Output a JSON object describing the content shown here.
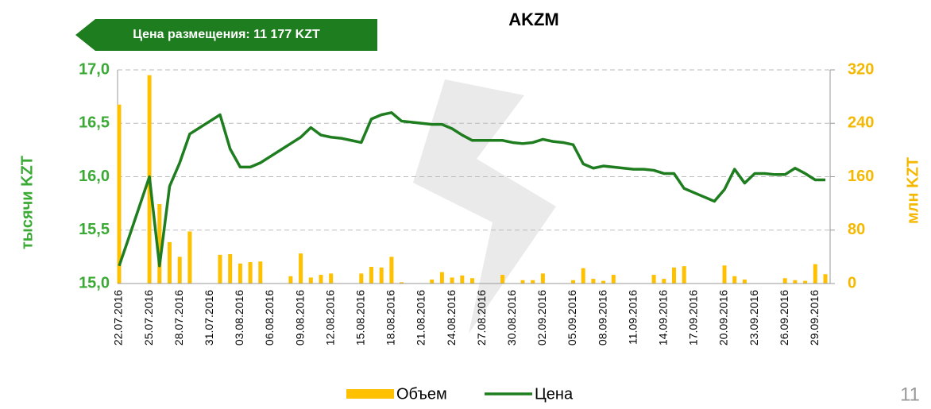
{
  "banner": "Цена размещения: 11 177  KZT",
  "page_number": "11",
  "chart_data": {
    "type": "bar-line",
    "title": "AKZM",
    "y_label": "тысячи KZT",
    "y2_label": "млн KZT",
    "categories": [
      "22.07.2016",
      null,
      null,
      "25.07.2016",
      null,
      null,
      "28.07.2016",
      null,
      null,
      "31.07.2016",
      null,
      null,
      "03.08.2016",
      null,
      null,
      "06.08.2016",
      null,
      null,
      "09.08.2016",
      null,
      null,
      "12.08.2016",
      null,
      null,
      "15.08.2016",
      null,
      null,
      "18.08.2016",
      null,
      null,
      "21.08.2016",
      null,
      null,
      "24.08.2016",
      null,
      null,
      "27.08.2016",
      null,
      null,
      "30.08.2016",
      null,
      null,
      "02.09.2016",
      null,
      null,
      "05.09.2016",
      null,
      null,
      "08.09.2016",
      null,
      null,
      "11.09.2016",
      null,
      null,
      "14.09.2016",
      null,
      null,
      "17.09.2016",
      null,
      null,
      "20.09.2016",
      null,
      null,
      "23.09.2016",
      null,
      null,
      "26.09.2016",
      null,
      null,
      "29.09.2016",
      null
    ],
    "series": [
      {
        "name": "Объем",
        "color": "#ffc000",
        "axis": "y2",
        "kind": "bar",
        "values": [
          268,
          null,
          null,
          312,
          119,
          62,
          40,
          78,
          null,
          null,
          43,
          44,
          30,
          32,
          33,
          null,
          null,
          11,
          45,
          9,
          13,
          15,
          null,
          null,
          15,
          25,
          24,
          40,
          2,
          null,
          null,
          6,
          17,
          9,
          12,
          8,
          null,
          null,
          13,
          null,
          5,
          5,
          15,
          null,
          null,
          5,
          23,
          7,
          4,
          13,
          null,
          null,
          null,
          13,
          7,
          24,
          26,
          null,
          null,
          null,
          27,
          11,
          6,
          null,
          null,
          null,
          8,
          5,
          4,
          29,
          14
        ]
      },
      {
        "name": "Цена",
        "color": "#1e7d1e",
        "axis": "y",
        "kind": "line",
        "values": [
          15.165,
          15.44,
          15.72,
          16.0,
          15.165,
          15.91,
          16.13,
          16.4,
          16.46,
          16.52,
          16.58,
          16.26,
          16.09,
          16.09,
          16.13,
          16.19,
          16.25,
          16.31,
          16.37,
          16.46,
          16.39,
          16.37,
          16.36,
          16.34,
          16.32,
          16.54,
          16.58,
          16.6,
          16.52,
          16.51,
          16.5,
          16.49,
          16.49,
          16.45,
          16.39,
          16.34,
          16.34,
          16.34,
          16.34,
          16.32,
          16.31,
          16.32,
          16.35,
          16.33,
          16.32,
          16.3,
          16.12,
          16.08,
          16.1,
          16.09,
          16.08,
          16.07,
          16.07,
          16.06,
          16.03,
          16.03,
          15.89,
          15.85,
          15.81,
          15.77,
          15.88,
          16.07,
          15.94,
          16.03,
          16.03,
          16.02,
          16.02,
          16.08,
          16.03,
          15.97,
          15.97
        ]
      }
    ],
    "ylim": [
      15,
      17
    ],
    "yticks": [
      {
        "value": 15,
        "label": "15,0"
      },
      {
        "value": 15.5,
        "label": "15,5"
      },
      {
        "value": 16,
        "label": "16,0"
      },
      {
        "value": 16.5,
        "label": "16,5"
      },
      {
        "value": 17,
        "label": "17,0"
      }
    ],
    "y2lim": [
      0,
      320
    ],
    "y2ticks": [
      0,
      80,
      160,
      240,
      320
    ],
    "grid": true
  }
}
